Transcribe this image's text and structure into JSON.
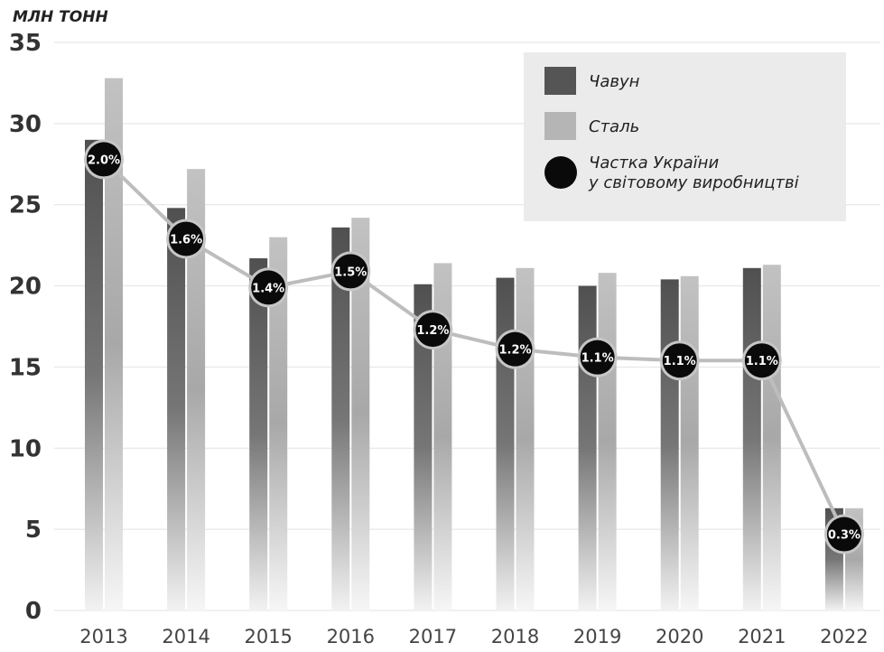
{
  "chart_data": {
    "type": "bar",
    "unit_label": "МЛН ТОНН",
    "categories": [
      "2013",
      "2014",
      "2015",
      "2016",
      "2017",
      "2018",
      "2019",
      "2020",
      "2021",
      "2022"
    ],
    "series": [
      {
        "name": "Чавун",
        "values": [
          29.0,
          24.8,
          21.7,
          23.6,
          20.1,
          20.5,
          20.0,
          20.4,
          21.1,
          6.3
        ]
      },
      {
        "name": "Сталь",
        "values": [
          32.8,
          27.2,
          23.0,
          24.2,
          21.4,
          21.1,
          20.8,
          20.6,
          21.3,
          6.3
        ]
      }
    ],
    "share_series": {
      "name_lines": [
        "Частка України",
        "у світовому виробництві"
      ],
      "labels": [
        "2.0%",
        "1.6%",
        "1.4%",
        "1.5%",
        "1.2%",
        "1.2%",
        "1.1%",
        "1.1%",
        "1.1%",
        "0.3%"
      ],
      "line_y": [
        27.8,
        22.9,
        19.9,
        20.9,
        17.3,
        16.1,
        15.6,
        15.4,
        15.4,
        4.7
      ]
    },
    "ylim": [
      0,
      35
    ],
    "yticks": [
      0,
      5,
      10,
      15,
      20,
      25,
      30,
      35
    ],
    "grid": true,
    "legend_position": "top-right",
    "colors": {
      "iron": "#555555",
      "steel": "#b5b5b5",
      "share_marker": "#0a0a0a",
      "share_line": "#bdbdbd",
      "grid": "#e2e2e2",
      "legend_bg": "#ebebeb"
    }
  }
}
